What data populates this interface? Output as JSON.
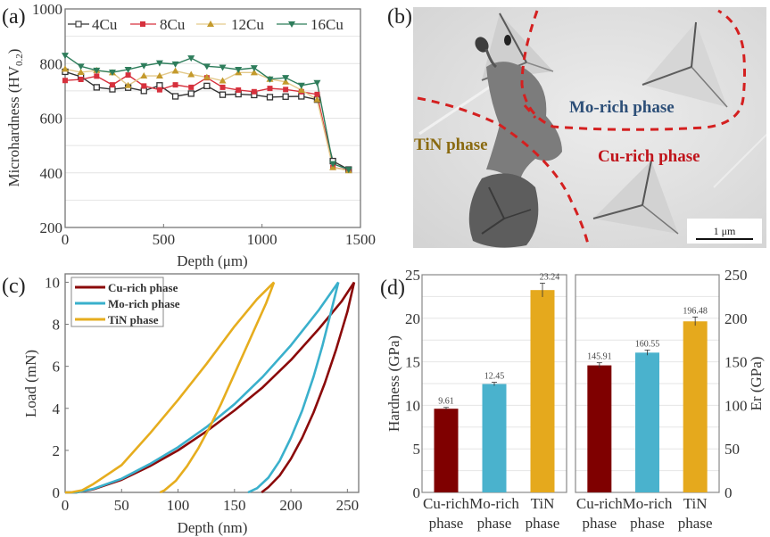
{
  "figure": {
    "panel_labels": [
      "(a)",
      "(b)",
      "(c)",
      "(d)"
    ]
  },
  "chart_data": [
    {
      "panel": "(a)",
      "type": "line",
      "title": "",
      "xlabel": "Depth (μm)",
      "ylabel": "Microhardness (HV0.2)",
      "ylabel_main": "Microhardness (HV",
      "ylabel_sub": "0.2",
      "ylabel_close": ")",
      "xlim": [
        0,
        1500
      ],
      "ylim": [
        200,
        1000
      ],
      "xticks": [
        0,
        500,
        1000,
        1500
      ],
      "yticks": [
        200,
        400,
        600,
        800,
        1000
      ],
      "grid": true,
      "legend_position": "top",
      "x": [
        0,
        80,
        160,
        240,
        320,
        400,
        480,
        560,
        640,
        720,
        800,
        880,
        960,
        1040,
        1120,
        1200,
        1280,
        1360,
        1440
      ],
      "series": [
        {
          "name": "4Cu",
          "color": "#333333",
          "marker": "open-square",
          "values": [
            770,
            752,
            713,
            706,
            712,
            700,
            720,
            680,
            690,
            718,
            686,
            688,
            685,
            677,
            679,
            680,
            668,
            443,
            412
          ]
        },
        {
          "name": "8Cu",
          "color": "#d6313d",
          "marker": "filled-square",
          "values": [
            738,
            742,
            754,
            722,
            758,
            718,
            704,
            722,
            713,
            748,
            713,
            703,
            697,
            709,
            705,
            697,
            687,
            420,
            410
          ]
        },
        {
          "name": "12Cu",
          "color": "#c49a2c",
          "marker": "triangle-up",
          "values": [
            780,
            768,
            775,
            767,
            720,
            755,
            755,
            773,
            760,
            750,
            737,
            767,
            767,
            743,
            733,
            703,
            668,
            420,
            408
          ]
        },
        {
          "name": "16Cu",
          "color": "#2e7d5b",
          "marker": "triangle-down",
          "values": [
            830,
            790,
            775,
            768,
            778,
            792,
            802,
            798,
            820,
            790,
            786,
            778,
            784,
            743,
            748,
            720,
            730,
            433,
            412
          ]
        }
      ]
    },
    {
      "panel": "(c)",
      "type": "line",
      "title": "",
      "xlabel": "Depth (nm)",
      "ylabel": "Load (mN)",
      "xlim": [
        0,
        260
      ],
      "ylim": [
        0,
        10.4
      ],
      "xticks": [
        0,
        50,
        100,
        150,
        200,
        250
      ],
      "yticks": [
        0,
        2,
        4,
        6,
        8,
        10
      ],
      "grid": false,
      "legend_position": "top-left",
      "series": [
        {
          "name": "Cu-rich phase",
          "color": "#8b0a0a",
          "loading": {
            "x": [
              0,
              10,
              25,
              50,
              75,
              100,
              125,
              150,
              175,
              200,
              225,
              245,
              256
            ],
            "y": [
              0,
              0,
              0.15,
              0.6,
              1.25,
              2.0,
              2.9,
              3.9,
              5.0,
              6.3,
              7.8,
              9.1,
              10
            ]
          },
          "unloading": {
            "x": [
              256,
              250,
              240,
              230,
              220,
              210,
              200,
              190,
              180,
              174
            ],
            "y": [
              10,
              8.6,
              6.8,
              5.2,
              3.8,
              2.6,
              1.6,
              0.8,
              0.25,
              0
            ]
          }
        },
        {
          "name": "Mo-rich phase",
          "color": "#3ab0cc",
          "loading": {
            "x": [
              0,
              10,
              25,
              50,
              75,
              100,
              125,
              150,
              175,
              200,
              225,
              242
            ],
            "y": [
              0,
              0,
              0.17,
              0.65,
              1.35,
              2.15,
              3.1,
              4.2,
              5.5,
              7.0,
              8.7,
              10
            ]
          },
          "unloading": {
            "x": [
              242,
              236,
              228,
              220,
              210,
              200,
              190,
              180,
              170,
              162
            ],
            "y": [
              10,
              8.7,
              7.0,
              5.5,
              3.9,
              2.6,
              1.5,
              0.7,
              0.2,
              0
            ]
          }
        },
        {
          "name": "TiN phase",
          "color": "#e6ad1e",
          "loading": {
            "x": [
              0,
              5,
              15,
              25,
              50,
              75,
              100,
              125,
              150,
              170,
              185
            ],
            "y": [
              0,
              0,
              0.1,
              0.4,
              1.3,
              2.8,
              4.4,
              6.1,
              7.9,
              9.2,
              10
            ]
          },
          "unloading": {
            "x": [
              185,
              178,
              168,
              158,
              148,
              138,
              128,
              118,
              108,
              98,
              88,
              84
            ],
            "y": [
              10,
              9.0,
              7.8,
              6.6,
              5.4,
              4.2,
              3.1,
              2.1,
              1.25,
              0.55,
              0.1,
              0
            ]
          }
        }
      ]
    },
    {
      "panel": "(d) left",
      "type": "bar",
      "title": "",
      "xlabel": "",
      "ylabel": "Hardness (GPa)",
      "ylim": [
        0,
        25
      ],
      "yticks": [
        0,
        5,
        10,
        15,
        20,
        25
      ],
      "grid": true,
      "categories": [
        "Cu-rich phase",
        "Mo-rich phase",
        "TiN phase"
      ],
      "category_lines": [
        [
          "Cu-rich",
          "phase"
        ],
        [
          "Mo-rich",
          "phase"
        ],
        [
          "TiN",
          "phase"
        ]
      ],
      "values": [
        9.61,
        12.45,
        23.24
      ],
      "value_labels": [
        "9.61",
        "12.45",
        "23.24"
      ],
      "errors": [
        0.15,
        0.2,
        0.8
      ],
      "colors": [
        "#7f0000",
        "#4ab2cd",
        "#e5a91d"
      ]
    },
    {
      "panel": "(d) right",
      "type": "bar",
      "title": "",
      "xlabel": "",
      "ylabel": "Er (GPa)",
      "ylim": [
        0,
        250
      ],
      "yticks": [
        0,
        50,
        100,
        150,
        200,
        250
      ],
      "grid": true,
      "categories": [
        "Cu-rich phase",
        "Mo-rich phase",
        "TiN phase"
      ],
      "category_lines": [
        [
          "Cu-rich",
          "phase"
        ],
        [
          "Mo-rich",
          "phase"
        ],
        [
          "TiN",
          "phase"
        ]
      ],
      "values": [
        145.91,
        160.55,
        196.48
      ],
      "value_labels": [
        "145.91",
        "160.55",
        "196.48"
      ],
      "errors": [
        3,
        3,
        5
      ],
      "colors": [
        "#7f0000",
        "#4ab2cd",
        "#e5a91d"
      ]
    }
  ],
  "micrograph": {
    "panel": "(b)",
    "labels": [
      {
        "text": "Mo-rich phase",
        "color": "#2d4f78"
      },
      {
        "text": "TiN phase",
        "color": "#8a6a10"
      },
      {
        "text": "Cu-rich phase",
        "color": "#c0141b"
      }
    ],
    "scale_bar": "1 μm",
    "boundary_color": "#d42020"
  }
}
